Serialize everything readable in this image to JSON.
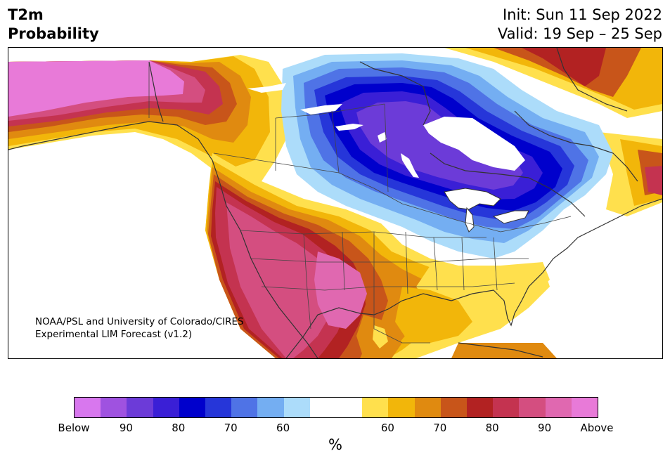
{
  "header": {
    "variable": "T2m",
    "subtitle": "Probability",
    "init": "Init: Sun 11 Sep 2022",
    "valid": "Valid: 19 Sep – 25 Sep"
  },
  "map": {
    "credit_line1": "NOAA/PSL and University of Colorado/CIRES",
    "credit_line2": "Experimental LIM Forecast (v1.2)"
  },
  "colorbar": {
    "colors": [
      "#d877ee",
      "#9f52e0",
      "#6c3bd8",
      "#3a1fd6",
      "#0000cc",
      "#2636d9",
      "#4f73e6",
      "#74aef2",
      "#acdcfa",
      "#ffffff",
      "#ffffff",
      "#ffe04d",
      "#f2b60a",
      "#e08a10",
      "#c8551a",
      "#b22222",
      "#c43350",
      "#d44e80",
      "#e068b0",
      "#e87ad8"
    ],
    "labels": [
      "Below",
      "90",
      "80",
      "70",
      "60",
      "60",
      "70",
      "80",
      "90",
      "Above"
    ],
    "units": "%"
  }
}
